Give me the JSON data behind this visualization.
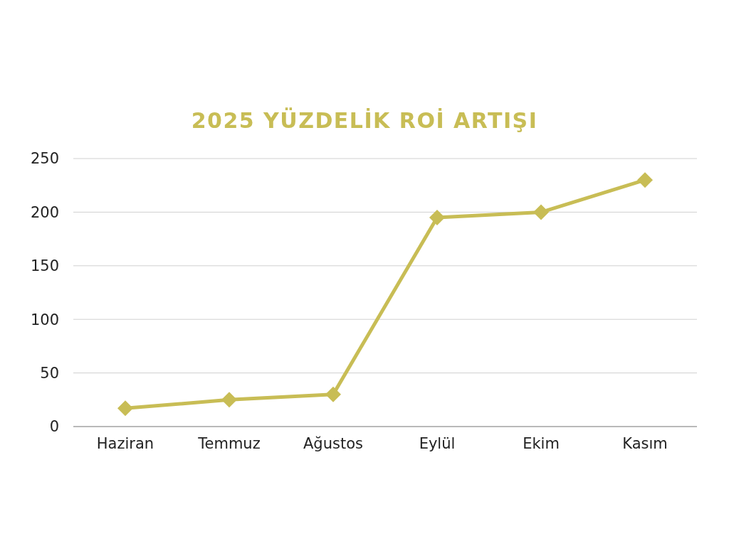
{
  "chart_data": {
    "type": "line",
    "subtitle": "2025 YÜZDELİK ROİ ARTIŞI",
    "categories": [
      "Haziran",
      "Temmuz",
      "Ağustos",
      "Eylül",
      "Ekim",
      "Kasım"
    ],
    "series": [
      {
        "color": "#c8bd55",
        "values": [
          17,
          25,
          30,
          195,
          200,
          230
        ]
      }
    ],
    "ylim": [
      0,
      250
    ],
    "yticks": [
      0,
      50,
      100,
      150,
      200,
      250
    ],
    "grid": "y",
    "legend": false,
    "marker": "diamond",
    "line_style": "solid"
  }
}
